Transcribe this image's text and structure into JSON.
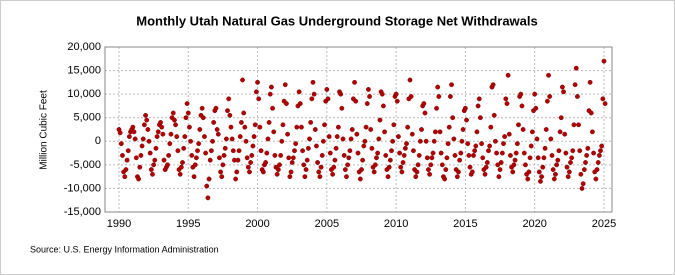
{
  "chart_data": {
    "type": "scatter",
    "title": "Monthly Utah Natural Gas Underground Storage Net Withdrawals",
    "y_label": "Million Cubic Feet",
    "source": "Source: U.S. Energy Information Administration",
    "color": "#b00000",
    "grid": true,
    "xlim": [
      1988.99,
      2025.58
    ],
    "xticks": [
      1990,
      1995,
      2000,
      2005,
      2010,
      2015,
      2020,
      2025
    ],
    "ylim": [
      -15000,
      20000
    ],
    "yticks": [
      {
        "value": -15000,
        "label": "-15,000"
      },
      {
        "value": -10000,
        "label": "-10,000"
      },
      {
        "value": -5000,
        "label": "-5,000"
      },
      0,
      {
        "value": 5000,
        "label": "5,000"
      },
      {
        "value": 10000,
        "label": "10,000"
      },
      {
        "value": 15000,
        "label": "15,000"
      },
      {
        "value": 20000,
        "label": "20,000"
      }
    ],
    "x": [
      1990,
      1990.083,
      1990.167,
      1990.25,
      1990.333,
      1990.417,
      1990.5,
      1990.583,
      1990.667,
      1990.75,
      1990.833,
      1990.917,
      1991,
      1991.083,
      1991.167,
      1991.25,
      1991.333,
      1991.417,
      1991.5,
      1991.583,
      1991.667,
      1991.75,
      1991.833,
      1991.917,
      1992,
      1992.083,
      1992.167,
      1992.25,
      1992.333,
      1992.417,
      1992.5,
      1992.583,
      1992.667,
      1992.75,
      1992.833,
      1992.917,
      1993,
      1993.083,
      1993.167,
      1993.25,
      1993.333,
      1993.417,
      1993.5,
      1993.583,
      1993.667,
      1993.75,
      1993.833,
      1993.917,
      1994,
      1994.083,
      1994.167,
      1994.25,
      1994.333,
      1994.417,
      1994.5,
      1994.583,
      1994.667,
      1994.75,
      1994.833,
      1994.917,
      1995,
      1995.083,
      1995.167,
      1995.25,
      1995.333,
      1995.417,
      1995.5,
      1995.583,
      1995.667,
      1995.75,
      1995.833,
      1995.917,
      1996,
      1996.083,
      1996.167,
      1996.25,
      1996.333,
      1996.417,
      1996.5,
      1996.583,
      1996.667,
      1996.75,
      1996.833,
      1996.917,
      1997,
      1997.083,
      1997.167,
      1997.25,
      1997.333,
      1997.417,
      1997.5,
      1997.583,
      1997.667,
      1997.75,
      1997.833,
      1997.917,
      1998,
      1998.083,
      1998.167,
      1998.25,
      1998.333,
      1998.417,
      1998.5,
      1998.583,
      1998.667,
      1998.75,
      1998.833,
      1998.917,
      1999,
      1999.083,
      1999.167,
      1999.25,
      1999.333,
      1999.417,
      1999.5,
      1999.583,
      1999.667,
      1999.75,
      1999.833,
      1999.917,
      2000,
      2000.083,
      2000.167,
      2000.25,
      2000.333,
      2000.417,
      2000.5,
      2000.583,
      2000.667,
      2000.75,
      2000.833,
      2000.917,
      2001,
      2001.083,
      2001.167,
      2001.25,
      2001.333,
      2001.417,
      2001.5,
      2001.583,
      2001.667,
      2001.75,
      2001.833,
      2001.917,
      2002,
      2002.083,
      2002.167,
      2002.25,
      2002.333,
      2002.417,
      2002.5,
      2002.583,
      2002.667,
      2002.75,
      2002.833,
      2002.917,
      2003,
      2003.083,
      2003.167,
      2003.25,
      2003.333,
      2003.417,
      2003.5,
      2003.583,
      2003.667,
      2003.75,
      2003.833,
      2003.917,
      2004,
      2004.083,
      2004.167,
      2004.25,
      2004.333,
      2004.417,
      2004.5,
      2004.583,
      2004.667,
      2004.75,
      2004.833,
      2004.917,
      2005,
      2005.083,
      2005.167,
      2005.25,
      2005.333,
      2005.417,
      2005.5,
      2005.583,
      2005.667,
      2005.75,
      2005.833,
      2005.917,
      2006,
      2006.083,
      2006.167,
      2006.25,
      2006.333,
      2006.417,
      2006.5,
      2006.583,
      2006.667,
      2006.75,
      2006.833,
      2006.917,
      2007,
      2007.083,
      2007.167,
      2007.25,
      2007.333,
      2007.417,
      2007.5,
      2007.583,
      2007.667,
      2007.75,
      2007.833,
      2007.917,
      2008,
      2008.083,
      2008.167,
      2008.25,
      2008.333,
      2008.417,
      2008.5,
      2008.583,
      2008.667,
      2008.75,
      2008.833,
      2008.917,
      2009,
      2009.083,
      2009.167,
      2009.25,
      2009.333,
      2009.417,
      2009.5,
      2009.583,
      2009.667,
      2009.75,
      2009.833,
      2009.917,
      2010,
      2010.083,
      2010.167,
      2010.25,
      2010.333,
      2010.417,
      2010.5,
      2010.583,
      2010.667,
      2010.75,
      2010.833,
      2010.917,
      2011,
      2011.083,
      2011.167,
      2011.25,
      2011.333,
      2011.417,
      2011.5,
      2011.583,
      2011.667,
      2011.75,
      2011.833,
      2011.917,
      2012,
      2012.083,
      2012.167,
      2012.25,
      2012.333,
      2012.417,
      2012.5,
      2012.583,
      2012.667,
      2012.75,
      2012.833,
      2012.917,
      2013,
      2013.083,
      2013.167,
      2013.25,
      2013.333,
      2013.417,
      2013.5,
      2013.583,
      2013.667,
      2013.75,
      2013.833,
      2013.917,
      2014,
      2014.083,
      2014.167,
      2014.25,
      2014.333,
      2014.417,
      2014.5,
      2014.583,
      2014.667,
      2014.75,
      2014.833,
      2014.917,
      2015,
      2015.083,
      2015.167,
      2015.25,
      2015.333,
      2015.417,
      2015.5,
      2015.583,
      2015.667,
      2015.75,
      2015.833,
      2015.917,
      2016,
      2016.083,
      2016.167,
      2016.25,
      2016.333,
      2016.417,
      2016.5,
      2016.583,
      2016.667,
      2016.75,
      2016.833,
      2016.917,
      2017,
      2017.083,
      2017.167,
      2017.25,
      2017.333,
      2017.417,
      2017.5,
      2017.583,
      2017.667,
      2017.75,
      2017.833,
      2017.917,
      2018,
      2018.083,
      2018.167,
      2018.25,
      2018.333,
      2018.417,
      2018.5,
      2018.583,
      2018.667,
      2018.75,
      2018.833,
      2018.917,
      2019,
      2019.083,
      2019.167,
      2019.25,
      2019.333,
      2019.417,
      2019.5,
      2019.583,
      2019.667,
      2019.75,
      2019.833,
      2019.917,
      2020,
      2020.083,
      2020.167,
      2020.25,
      2020.333,
      2020.417,
      2020.5,
      2020.583,
      2020.667,
      2020.75,
      2020.833,
      2020.917,
      2021,
      2021.083,
      2021.167,
      2021.25,
      2021.333,
      2021.417,
      2021.5,
      2021.583,
      2021.667,
      2021.75,
      2021.833,
      2021.917,
      2022,
      2022.083,
      2022.167,
      2022.25,
      2022.333,
      2022.417,
      2022.5,
      2022.583,
      2022.667,
      2022.75,
      2022.833,
      2022.917,
      2023,
      2023.083,
      2023.167,
      2023.25,
      2023.333,
      2023.417,
      2023.5,
      2023.583,
      2023.667,
      2023.75,
      2023.833,
      2023.917,
      2024,
      2024.083,
      2024.167,
      2024.25,
      2024.333,
      2024.417,
      2024.5,
      2024.583,
      2024.667,
      2024.75,
      2024.833,
      2024.917,
      2025,
      2025.083
    ],
    "values": [
      2500,
      1800,
      -500,
      -3000,
      -6500,
      -7500,
      -6000,
      -4000,
      -2000,
      1000,
      2000,
      2500,
      3000,
      2000,
      500,
      -3500,
      -7500,
      -8000,
      -5500,
      -3000,
      -1000,
      500,
      3500,
      5500,
      4500,
      2500,
      0,
      -2500,
      -6000,
      -7000,
      -5000,
      -4000,
      -1500,
      1000,
      2000,
      3500,
      4000,
      3000,
      1500,
      -4000,
      -6000,
      -5500,
      -5000,
      -3000,
      -500,
      1500,
      5000,
      6000,
      4500,
      3500,
      1000,
      -2000,
      -6000,
      -7000,
      -5500,
      -4500,
      -1500,
      1000,
      5000,
      8000,
      6000,
      3000,
      0,
      -3000,
      -5500,
      -7500,
      -5000,
      -3500,
      -2000,
      -500,
      2500,
      5500,
      7000,
      5000,
      1000,
      -2500,
      -9500,
      -12000,
      -8000,
      -4000,
      -2000,
      0,
      4000,
      6500,
      7000,
      2500,
      1500,
      -3500,
      -6500,
      -7500,
      -5000,
      -3000,
      -1500,
      500,
      6500,
      9000,
      5500,
      3000,
      500,
      -2000,
      -4000,
      -8000,
      -6500,
      -4000,
      -2000,
      1000,
      4000,
      13000,
      6000,
      3000,
      0,
      -3500,
      -5500,
      -6500,
      -4500,
      -3000,
      -1000,
      1000,
      3500,
      10500,
      12500,
      9000,
      3000,
      -2000,
      -6000,
      -6500,
      -5000,
      -4500,
      -2500,
      500,
      4000,
      10000,
      11500,
      7000,
      2000,
      -3000,
      -5500,
      -7000,
      -6000,
      -5000,
      -3000,
      0,
      3500,
      8500,
      12000,
      8000,
      1500,
      -3500,
      -7500,
      -6500,
      -4500,
      -3500,
      -2000,
      -500,
      3000,
      7500,
      10500,
      8000,
      3000,
      -2000,
      -5000,
      -7500,
      -6000,
      -4000,
      -1500,
      500,
      4000,
      9000,
      12500,
      10000,
      2500,
      -1000,
      -4500,
      -6500,
      -7500,
      -5500,
      -3000,
      0,
      3500,
      8500,
      11000,
      9000,
      1000,
      -2500,
      -6000,
      -7000,
      -5500,
      -4000,
      -1500,
      1000,
      3000,
      10500,
      10000,
      7000,
      500,
      -3000,
      -6000,
      -7500,
      -5000,
      -3500,
      -2000,
      500,
      2500,
      9000,
      12500,
      8500,
      1500,
      -2500,
      -6500,
      -8000,
      -6000,
      -4000,
      -1000,
      0,
      3000,
      8000,
      11000,
      9500,
      2500,
      -1500,
      -5500,
      -6500,
      -5000,
      -3500,
      -2500,
      500,
      4500,
      10500,
      10000,
      7500,
      2000,
      -3000,
      -6000,
      -7500,
      -5500,
      -4000,
      -2000,
      0,
      3500,
      9500,
      10000,
      8500,
      1000,
      -2500,
      -5500,
      -6500,
      -4500,
      -3000,
      -1500,
      -500,
      3000,
      9000,
      13000,
      9500,
      1500,
      -2000,
      -6000,
      -7500,
      -6500,
      -5000,
      -3000,
      0,
      2500,
      7500,
      8000,
      6000,
      0,
      -3500,
      -6000,
      -7000,
      -5000,
      -3500,
      -2500,
      0,
      2000,
      7000,
      11500,
      9500,
      2000,
      -2500,
      -5000,
      -7500,
      -8000,
      -6000,
      -3500,
      -500,
      3000,
      9500,
      12000,
      5000,
      500,
      -3000,
      -6000,
      -7500,
      -6500,
      -4000,
      -2500,
      0,
      2500,
      6500,
      7000,
      4500,
      -500,
      -3000,
      -5500,
      -7000,
      -6500,
      -3000,
      -2000,
      -1000,
      2000,
      7500,
      9000,
      5000,
      -500,
      -3500,
      -6000,
      -7000,
      -5500,
      -4500,
      -2000,
      -1000,
      3000,
      11500,
      12000,
      5500,
      0,
      -2500,
      -5000,
      -7500,
      -6000,
      -4500,
      -2500,
      -500,
      1000,
      9000,
      8000,
      14000,
      1500,
      -3000,
      -5500,
      -6500,
      -5000,
      -4000,
      -2500,
      -500,
      3500,
      9500,
      10000,
      7500,
      2500,
      -2500,
      -5000,
      -7000,
      -8000,
      -6500,
      -3500,
      -1000,
      2000,
      6500,
      10000,
      7000,
      500,
      -3500,
      -6500,
      -8500,
      -7500,
      -5500,
      -3500,
      -1500,
      2500,
      8500,
      14000,
      9500,
      500,
      -3000,
      -6000,
      -8000,
      -7000,
      -5000,
      -4000,
      -2000,
      2000,
      5000,
      11500,
      10500,
      1500,
      -2500,
      -5500,
      -7500,
      -6500,
      -4500,
      -3500,
      -2000,
      3500,
      12000,
      15500,
      9500,
      3500,
      -2000,
      -7000,
      -10000,
      -9000,
      -6000,
      -4500,
      -3000,
      -1500,
      6500,
      12500,
      6000,
      2000,
      -2500,
      -6500,
      -8000,
      -6000,
      -4500,
      -3000,
      -2000,
      -1000,
      9000,
      17000,
      8000
    ]
  }
}
